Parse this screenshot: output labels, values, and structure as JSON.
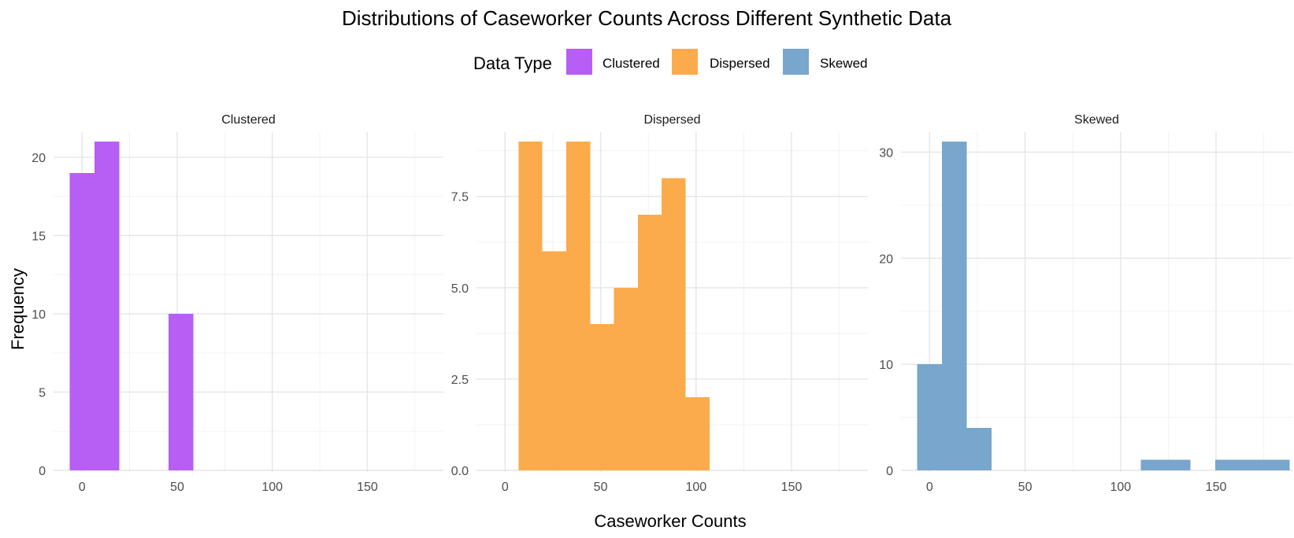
{
  "chart_data": {
    "type": "bar",
    "title": "Distributions of Caseworker Counts Across Different Synthetic Data",
    "xlabel": "Caseworker Counts",
    "ylabel": "Frequency",
    "legend": {
      "title": "Data Type",
      "placement": "top",
      "entries": [
        {
          "label": "Clustered",
          "color": "#b75ef5"
        },
        {
          "label": "Dispersed",
          "color": "#fbab4b"
        },
        {
          "label": "Skewed",
          "color": "#78a6cc"
        }
      ]
    },
    "xlim": [
      -15,
      190
    ],
    "xticks": [
      0,
      50,
      100,
      150
    ],
    "grid": true,
    "panels": [
      {
        "name": "Clustered",
        "color": "#b75ef5",
        "ylim": [
          0,
          21
        ],
        "yticks": [
          0,
          5,
          10,
          15,
          20
        ],
        "ytick_labels": [
          "0",
          "5",
          "10",
          "15",
          "20"
        ],
        "bins": [
          {
            "x0": -6.5,
            "x1": 6.5,
            "count": 19
          },
          {
            "x0": 6.5,
            "x1": 19.5,
            "count": 21
          },
          {
            "x0": 19.5,
            "x1": 32.5,
            "count": 0
          },
          {
            "x0": 32.5,
            "x1": 45.5,
            "count": 0
          },
          {
            "x0": 45.5,
            "x1": 58.5,
            "count": 10
          }
        ]
      },
      {
        "name": "Dispersed",
        "color": "#fbab4b",
        "ylim": [
          0,
          9
        ],
        "yticks": [
          0,
          2.5,
          5,
          7.5
        ],
        "ytick_labels": [
          "0.0",
          "2.5",
          "5.0",
          "7.5"
        ],
        "bins": [
          {
            "x0": 7,
            "x1": 19.5,
            "count": 9
          },
          {
            "x0": 19.5,
            "x1": 32,
            "count": 6
          },
          {
            "x0": 32,
            "x1": 44.5,
            "count": 9
          },
          {
            "x0": 44.5,
            "x1": 57,
            "count": 4
          },
          {
            "x0": 57,
            "x1": 69.5,
            "count": 5
          },
          {
            "x0": 69.5,
            "x1": 82,
            "count": 7
          },
          {
            "x0": 82,
            "x1": 94.5,
            "count": 8
          },
          {
            "x0": 94.5,
            "x1": 107,
            "count": 2
          }
        ]
      },
      {
        "name": "Skewed",
        "color": "#78a6cc",
        "ylim": [
          0,
          31
        ],
        "yticks": [
          0,
          10,
          20,
          30
        ],
        "ytick_labels": [
          "0",
          "10",
          "20",
          "30"
        ],
        "bins": [
          {
            "x0": -6.5,
            "x1": 6.5,
            "count": 10
          },
          {
            "x0": 6.5,
            "x1": 19.5,
            "count": 31
          },
          {
            "x0": 19.5,
            "x1": 32.5,
            "count": 4
          },
          {
            "x0": 32.5,
            "x1": 45.5,
            "count": 0
          },
          {
            "x0": 45.5,
            "x1": 58.5,
            "count": 0
          },
          {
            "x0": 58.5,
            "x1": 71.5,
            "count": 0
          },
          {
            "x0": 71.5,
            "x1": 84.5,
            "count": 0
          },
          {
            "x0": 84.5,
            "x1": 97.5,
            "count": 0
          },
          {
            "x0": 97.5,
            "x1": 110.5,
            "count": 0
          },
          {
            "x0": 110.5,
            "x1": 123.5,
            "count": 1
          },
          {
            "x0": 123.5,
            "x1": 136.5,
            "count": 1
          },
          {
            "x0": 136.5,
            "x1": 149.5,
            "count": 0
          },
          {
            "x0": 149.5,
            "x1": 162.5,
            "count": 1
          },
          {
            "x0": 162.5,
            "x1": 175.5,
            "count": 1
          },
          {
            "x0": 175.5,
            "x1": 188.5,
            "count": 1
          }
        ]
      }
    ]
  }
}
